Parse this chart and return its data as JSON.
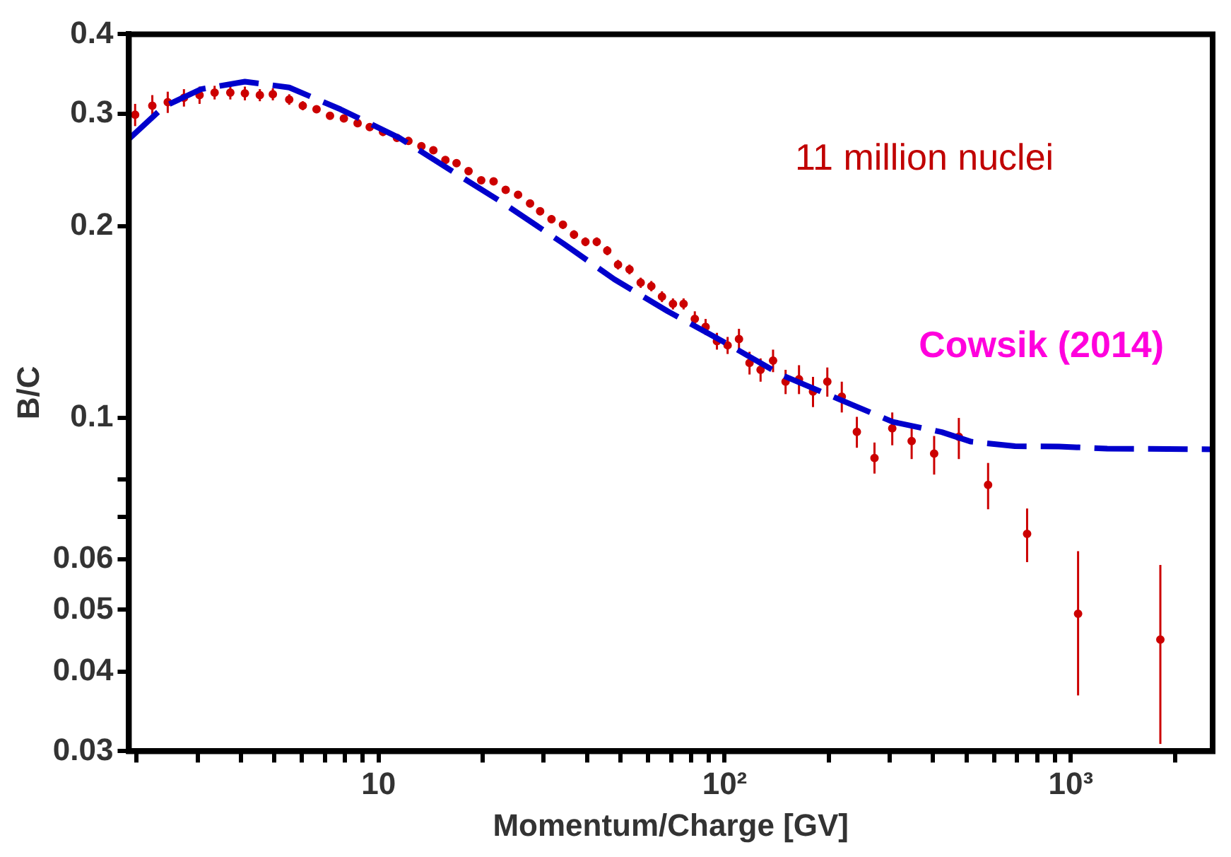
{
  "chart_data": {
    "type": "scatter",
    "xlabel": "Momentum/Charge [GV]",
    "ylabel": "B/C",
    "log": "xy",
    "grid": false,
    "legend": false,
    "xlim": [
      1.9,
      2570
    ],
    "ylim": [
      0.03,
      0.4
    ],
    "xticks": [
      {
        "value": 2,
        "label": null
      },
      {
        "value": 3,
        "label": null
      },
      {
        "value": 4,
        "label": null
      },
      {
        "value": 5,
        "label": null
      },
      {
        "value": 6,
        "label": null
      },
      {
        "value": 7,
        "label": null
      },
      {
        "value": 8,
        "label": null
      },
      {
        "value": 9,
        "label": null
      },
      10,
      {
        "value": 20,
        "label": null
      },
      {
        "value": 30,
        "label": null
      },
      {
        "value": 40,
        "label": null
      },
      {
        "value": 50,
        "label": null
      },
      {
        "value": 60,
        "label": null
      },
      {
        "value": 70,
        "label": null
      },
      {
        "value": 80,
        "label": null
      },
      {
        "value": 90,
        "label": null
      },
      {
        "value": 100,
        "label": "10²"
      },
      {
        "value": 200,
        "label": null
      },
      {
        "value": 300,
        "label": null
      },
      {
        "value": 400,
        "label": null
      },
      {
        "value": 500,
        "label": null
      },
      {
        "value": 600,
        "label": null
      },
      {
        "value": 700,
        "label": null
      },
      {
        "value": 800,
        "label": null
      },
      {
        "value": 900,
        "label": null
      },
      {
        "value": 1000,
        "label": "10³"
      },
      {
        "value": 2000,
        "label": null
      }
    ],
    "yticks": [
      0.03,
      0.04,
      0.05,
      0.06,
      {
        "value": 0.07,
        "label": null
      },
      {
        "value": 0.08,
        "label": null
      },
      0.1,
      0.2,
      0.3,
      0.4
    ],
    "annotations": [
      "11 million nuclei",
      "Cowsik (2014)"
    ],
    "series": [
      {
        "type": "scatter",
        "color": "#cc0000",
        "marker": "circle",
        "x": [
          1.98,
          2.22,
          2.46,
          2.74,
          3.04,
          3.36,
          3.73,
          4.11,
          4.54,
          4.95,
          5.52,
          6.04,
          6.62,
          7.24,
          7.94,
          8.7,
          9.43,
          10.3,
          11.3,
          12.2,
          13.3,
          14.4,
          15.6,
          16.8,
          18.2,
          19.8,
          21.5,
          23.3,
          25.3,
          27.4,
          29.3,
          31.6,
          34.1,
          36.7,
          39.6,
          42.7,
          45.8,
          49.2,
          53.1,
          57.2,
          61.4,
          65.9,
          70.9,
          76.1,
          82,
          88.1,
          95,
          102,
          110,
          118,
          127,
          138,
          150,
          164,
          180,
          198,
          218,
          241,
          271,
          305,
          347,
          403,
          475,
          577,
          748,
          1050,
          1815
        ],
        "values": [
          0.299,
          0.309,
          0.313,
          0.318,
          0.321,
          0.324,
          0.324,
          0.323,
          0.321,
          0.322,
          0.316,
          0.309,
          0.305,
          0.298,
          0.295,
          0.29,
          0.286,
          0.281,
          0.275,
          0.272,
          0.267,
          0.263,
          0.254,
          0.251,
          0.244,
          0.236,
          0.235,
          0.228,
          0.224,
          0.217,
          0.211,
          0.205,
          0.201,
          0.194,
          0.189,
          0.189,
          0.183,
          0.174,
          0.171,
          0.163,
          0.161,
          0.155,
          0.151,
          0.151,
          0.143,
          0.139,
          0.132,
          0.13,
          0.133,
          0.122,
          0.119,
          0.123,
          0.114,
          0.115,
          0.11,
          0.114,
          0.108,
          0.0951,
          0.0865,
          0.0963,
          0.092,
          0.0879,
          0.0934,
          0.0785,
          0.0658,
          0.0493,
          0.0449
        ],
        "errors": [
          0.012,
          0.012,
          0.012,
          0.01,
          0.01,
          0.008,
          0.008,
          0.008,
          0.007,
          0.007,
          0.006,
          0.005,
          0.004,
          0.004,
          0.004,
          0.003,
          0.003,
          0.003,
          0.003,
          0.003,
          0.003,
          0.003,
          0.003,
          0.003,
          0.003,
          0.003,
          0.003,
          0.003,
          0.003,
          0.003,
          0.003,
          0.003,
          0.003,
          0.003,
          0.003,
          0.003,
          0.003,
          0.003,
          0.003,
          0.003,
          0.003,
          0.003,
          0.003,
          0.003,
          0.004,
          0.004,
          0.004,
          0.004,
          0.005,
          0.005,
          0.005,
          0.005,
          0.005,
          0.006,
          0.006,
          0.006,
          0.006,
          [
            0.0898,
            0.1004
          ],
          [
            0.0818,
            0.0915
          ],
          [
            0.0906,
            0.102
          ],
          [
            0.0862,
            0.098
          ],
          [
            0.0815,
            0.0937
          ],
          [
            0.0862,
            0.1
          ],
          [
            0.0719,
            0.085
          ],
          [
            0.0594,
            0.0721
          ],
          [
            0.0367,
            0.0618
          ],
          [
            0.0308,
            0.0588
          ]
        ]
      },
      {
        "type": "line",
        "color": "#0000cc",
        "marker": "none",
        "line_style": "dashed",
        "x": [
          1.9,
          2.4,
          3.07,
          4.11,
          5.52,
          7.76,
          11.5,
          16.9,
          22.7,
          34.1,
          48,
          68.5,
          101,
          145,
          214,
          306,
          424,
          515,
          690,
          925,
          1275,
          2570
        ],
        "values": [
          0.274,
          0.308,
          0.328,
          0.337,
          0.33,
          0.305,
          0.275,
          0.241,
          0.218,
          0.188,
          0.165,
          0.147,
          0.131,
          0.117,
          0.107,
          0.0986,
          0.095,
          0.0918,
          0.0903,
          0.0902,
          0.0895,
          0.0893
        ]
      }
    ]
  }
}
